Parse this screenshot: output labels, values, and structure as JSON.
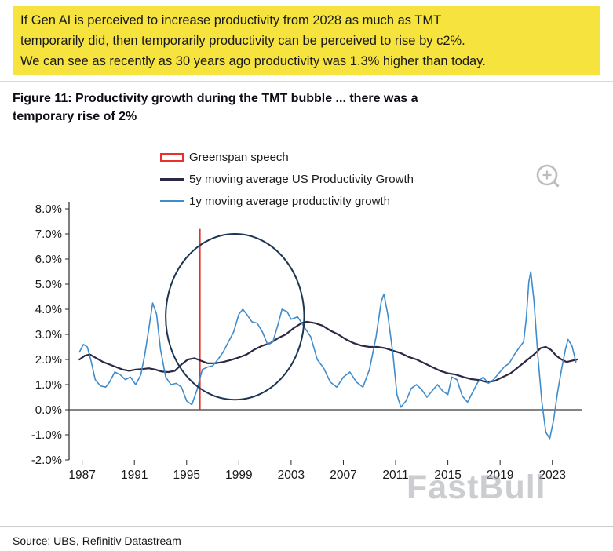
{
  "note": {
    "bg_color": "#f6e33d",
    "lines": [
      "If Gen AI is perceived to increase productivity from 2028 as much as TMT",
      "temporarily did, then temporarily productivity can be perceived to rise by c2%.",
      "We can see as recently as 30 years ago productivity was 1.3% higher than today."
    ]
  },
  "watermark": "FastBull",
  "source": "Source: UBS, Refinitiv Datastream",
  "chart_data": {
    "type": "line",
    "title": "Figure 11: Productivity growth during the TMT bubble ... there was a temporary rise of 2%",
    "xlabel": "",
    "ylabel": "",
    "grid": false,
    "legend_position": "top-center",
    "xlim": [
      1986,
      2025.3
    ],
    "ylim": [
      -2,
      8
    ],
    "x_ticks": [
      {
        "value": 1987,
        "label": "1987"
      },
      {
        "value": 1991,
        "label": "1991"
      },
      {
        "value": 1995,
        "label": "1995"
      },
      {
        "value": 1999,
        "label": "1999"
      },
      {
        "value": 2003,
        "label": "2003"
      },
      {
        "value": 2007,
        "label": "2007"
      },
      {
        "value": 2011,
        "label": "2011"
      },
      {
        "value": 2015,
        "label": "2015"
      },
      {
        "value": 2019,
        "label": "2019"
      },
      {
        "value": 2023,
        "label": "2023"
      }
    ],
    "y_ticks": [
      {
        "value": 8,
        "label": "8.0%"
      },
      {
        "value": 7,
        "label": "7.0%"
      },
      {
        "value": 6,
        "label": "6.0%"
      },
      {
        "value": 5,
        "label": "5.0%"
      },
      {
        "value": 4,
        "label": "4.0%"
      },
      {
        "value": 3,
        "label": "3.0%"
      },
      {
        "value": 2,
        "label": "2.0%"
      },
      {
        "value": 1,
        "label": "1.0%"
      },
      {
        "value": 0,
        "label": "0.0%"
      },
      {
        "value": -1,
        "label": "-1.0%"
      },
      {
        "value": -2,
        "label": "-2.0%"
      }
    ],
    "legend": [
      {
        "label": "Greenspan speech",
        "marker": "rect-outline",
        "color": "#e8312b"
      },
      {
        "label": "5y moving average US Productivity Growth",
        "marker": "line",
        "color": "#2b2745"
      },
      {
        "label": "1y moving average productivity growth",
        "marker": "line",
        "color": "#3f8ccd"
      }
    ],
    "annotations": {
      "greenspan_line": {
        "x": 1996.0,
        "y0": 0,
        "y1": 7.2,
        "color": "#e8312b"
      },
      "tmt_circle": {
        "cx": 1998.7,
        "cy": 3.7,
        "rx": 5.3,
        "ry": 3.3,
        "color": "#1c3553"
      }
    },
    "series": [
      {
        "name": "5y moving average US Productivity Growth",
        "color": "#2b2745",
        "width": 2.2,
        "points": [
          [
            1986.8,
            2.0
          ],
          [
            1987.2,
            2.15
          ],
          [
            1987.6,
            2.2
          ],
          [
            1988.1,
            2.05
          ],
          [
            1988.6,
            1.9
          ],
          [
            1989.1,
            1.8
          ],
          [
            1989.6,
            1.7
          ],
          [
            1990.1,
            1.6
          ],
          [
            1990.6,
            1.55
          ],
          [
            1991.1,
            1.6
          ],
          [
            1991.6,
            1.62
          ],
          [
            1992.1,
            1.65
          ],
          [
            1992.6,
            1.6
          ],
          [
            1993.1,
            1.52
          ],
          [
            1993.6,
            1.5
          ],
          [
            1994.1,
            1.55
          ],
          [
            1994.6,
            1.8
          ],
          [
            1995.1,
            2.0
          ],
          [
            1995.6,
            2.05
          ],
          [
            1996.1,
            1.95
          ],
          [
            1996.6,
            1.85
          ],
          [
            1997.2,
            1.85
          ],
          [
            1997.8,
            1.9
          ],
          [
            1998.4,
            1.98
          ],
          [
            1999.0,
            2.08
          ],
          [
            1999.6,
            2.2
          ],
          [
            2000.2,
            2.4
          ],
          [
            2000.8,
            2.55
          ],
          [
            2001.4,
            2.65
          ],
          [
            2002.0,
            2.85
          ],
          [
            2002.6,
            3.0
          ],
          [
            2003.2,
            3.25
          ],
          [
            2003.8,
            3.45
          ],
          [
            2004.2,
            3.5
          ],
          [
            2004.8,
            3.45
          ],
          [
            2005.4,
            3.35
          ],
          [
            2006.0,
            3.15
          ],
          [
            2006.6,
            3.0
          ],
          [
            2007.2,
            2.8
          ],
          [
            2007.8,
            2.65
          ],
          [
            2008.4,
            2.55
          ],
          [
            2009.0,
            2.5
          ],
          [
            2009.6,
            2.5
          ],
          [
            2010.2,
            2.45
          ],
          [
            2010.8,
            2.35
          ],
          [
            2011.4,
            2.25
          ],
          [
            2012.0,
            2.1
          ],
          [
            2012.6,
            2.0
          ],
          [
            2013.2,
            1.85
          ],
          [
            2013.8,
            1.7
          ],
          [
            2014.4,
            1.55
          ],
          [
            2015.0,
            1.45
          ],
          [
            2015.6,
            1.4
          ],
          [
            2016.2,
            1.3
          ],
          [
            2016.8,
            1.22
          ],
          [
            2017.4,
            1.18
          ],
          [
            2018.0,
            1.1
          ],
          [
            2018.6,
            1.15
          ],
          [
            2019.2,
            1.3
          ],
          [
            2019.8,
            1.45
          ],
          [
            2020.4,
            1.7
          ],
          [
            2021.0,
            1.95
          ],
          [
            2021.6,
            2.2
          ],
          [
            2022.1,
            2.45
          ],
          [
            2022.5,
            2.5
          ],
          [
            2022.9,
            2.38
          ],
          [
            2023.3,
            2.15
          ],
          [
            2023.7,
            2.0
          ],
          [
            2024.1,
            1.9
          ],
          [
            2024.5,
            1.95
          ],
          [
            2024.9,
            2.0
          ]
        ]
      },
      {
        "name": "1y moving average productivity growth",
        "color": "#3f8ccd",
        "width": 1.6,
        "points": [
          [
            1986.8,
            2.3
          ],
          [
            1987.1,
            2.6
          ],
          [
            1987.4,
            2.5
          ],
          [
            1987.7,
            1.9
          ],
          [
            1988.0,
            1.2
          ],
          [
            1988.4,
            0.95
          ],
          [
            1988.8,
            0.9
          ],
          [
            1989.1,
            1.1
          ],
          [
            1989.5,
            1.5
          ],
          [
            1989.9,
            1.4
          ],
          [
            1990.3,
            1.2
          ],
          [
            1990.7,
            1.3
          ],
          [
            1991.1,
            1.0
          ],
          [
            1991.5,
            1.4
          ],
          [
            1991.8,
            2.2
          ],
          [
            1992.1,
            3.2
          ],
          [
            1992.4,
            4.25
          ],
          [
            1992.7,
            3.8
          ],
          [
            1993.0,
            2.4
          ],
          [
            1993.4,
            1.3
          ],
          [
            1993.8,
            1.0
          ],
          [
            1994.2,
            1.05
          ],
          [
            1994.6,
            0.9
          ],
          [
            1995.0,
            0.35
          ],
          [
            1995.4,
            0.2
          ],
          [
            1995.8,
            0.8
          ],
          [
            1996.2,
            1.6
          ],
          [
            1996.6,
            1.7
          ],
          [
            1997.0,
            1.75
          ],
          [
            1997.4,
            2.0
          ],
          [
            1997.8,
            2.3
          ],
          [
            1998.2,
            2.7
          ],
          [
            1998.6,
            3.1
          ],
          [
            1999.0,
            3.8
          ],
          [
            1999.3,
            4.0
          ],
          [
            1999.6,
            3.8
          ],
          [
            2000.0,
            3.5
          ],
          [
            2000.4,
            3.45
          ],
          [
            2000.8,
            3.1
          ],
          [
            2001.2,
            2.6
          ],
          [
            2001.6,
            2.7
          ],
          [
            2002.0,
            3.4
          ],
          [
            2002.3,
            4.0
          ],
          [
            2002.7,
            3.9
          ],
          [
            2003.0,
            3.6
          ],
          [
            2003.5,
            3.7
          ],
          [
            2004.0,
            3.3
          ],
          [
            2004.5,
            2.9
          ],
          [
            2005.0,
            2.0
          ],
          [
            2005.5,
            1.65
          ],
          [
            2006.0,
            1.1
          ],
          [
            2006.5,
            0.9
          ],
          [
            2007.0,
            1.3
          ],
          [
            2007.5,
            1.5
          ],
          [
            2008.0,
            1.1
          ],
          [
            2008.5,
            0.9
          ],
          [
            2009.0,
            1.6
          ],
          [
            2009.5,
            2.9
          ],
          [
            2009.9,
            4.3
          ],
          [
            2010.1,
            4.6
          ],
          [
            2010.4,
            3.8
          ],
          [
            2010.8,
            2.2
          ],
          [
            2011.1,
            0.6
          ],
          [
            2011.4,
            0.1
          ],
          [
            2011.8,
            0.35
          ],
          [
            2012.2,
            0.85
          ],
          [
            2012.6,
            1.0
          ],
          [
            2013.0,
            0.8
          ],
          [
            2013.4,
            0.5
          ],
          [
            2013.8,
            0.75
          ],
          [
            2014.2,
            1.0
          ],
          [
            2014.6,
            0.75
          ],
          [
            2015.0,
            0.6
          ],
          [
            2015.3,
            1.3
          ],
          [
            2015.7,
            1.2
          ],
          [
            2016.1,
            0.55
          ],
          [
            2016.5,
            0.3
          ],
          [
            2016.9,
            0.7
          ],
          [
            2017.3,
            1.1
          ],
          [
            2017.7,
            1.3
          ],
          [
            2018.1,
            1.05
          ],
          [
            2018.5,
            1.2
          ],
          [
            2018.9,
            1.45
          ],
          [
            2019.3,
            1.7
          ],
          [
            2019.7,
            1.85
          ],
          [
            2020.1,
            2.2
          ],
          [
            2020.5,
            2.5
          ],
          [
            2020.8,
            2.7
          ],
          [
            2021.0,
            3.6
          ],
          [
            2021.2,
            5.1
          ],
          [
            2021.35,
            5.5
          ],
          [
            2021.6,
            4.3
          ],
          [
            2021.9,
            2.1
          ],
          [
            2022.2,
            0.3
          ],
          [
            2022.5,
            -0.9
          ],
          [
            2022.8,
            -1.15
          ],
          [
            2023.1,
            -0.4
          ],
          [
            2023.4,
            0.7
          ],
          [
            2023.7,
            1.6
          ],
          [
            2024.0,
            2.4
          ],
          [
            2024.2,
            2.8
          ],
          [
            2024.5,
            2.55
          ],
          [
            2024.8,
            1.9
          ]
        ]
      }
    ]
  }
}
